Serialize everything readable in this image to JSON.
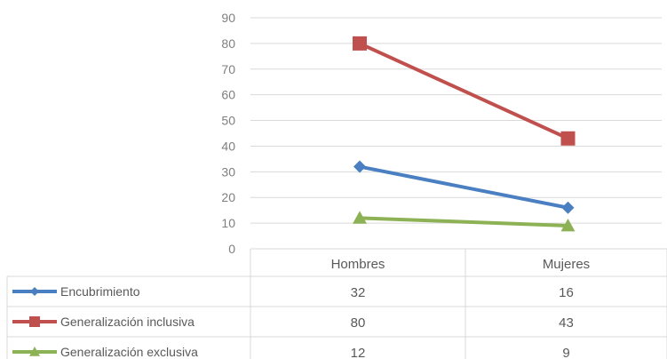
{
  "chart_data": {
    "type": "line",
    "title": "",
    "xlabel": "",
    "ylabel": "",
    "categories": [
      "Hombres",
      "Mujeres"
    ],
    "ylim": [
      0,
      90
    ],
    "yticks": [
      0,
      10,
      20,
      30,
      40,
      50,
      60,
      70,
      80,
      90
    ],
    "grid": true,
    "legend": "data-table-left",
    "series": [
      {
        "name": "Encubrimiento",
        "values": [
          32,
          16
        ],
        "color": "#4a7fc1",
        "marker": "diamond"
      },
      {
        "name": "Generalización inclusiva",
        "values": [
          80,
          43
        ],
        "color": "#c0504d",
        "marker": "square"
      },
      {
        "name": "Generalización exclusiva",
        "values": [
          12,
          9
        ],
        "color": "#8db255",
        "marker": "triangle"
      }
    ],
    "table": {
      "cells": [
        [
          "32",
          "16"
        ],
        [
          "80",
          "43"
        ],
        [
          "12",
          "9"
        ]
      ]
    }
  }
}
